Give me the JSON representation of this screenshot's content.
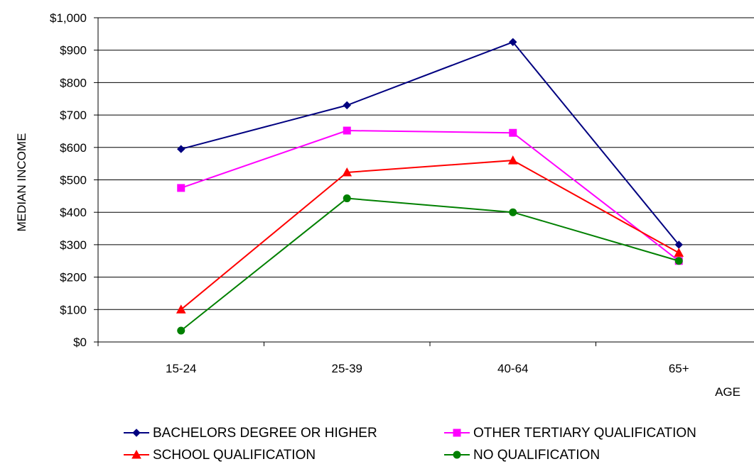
{
  "chart_data": {
    "type": "line",
    "title": "",
    "xlabel": "AGE",
    "ylabel": "MEDIAN INCOME",
    "categories": [
      "15-24",
      "25-39",
      "40-64",
      "65+"
    ],
    "ylim": [
      0,
      1000
    ],
    "yticks": [
      "$0",
      "$100",
      "$200",
      "$300",
      "$400",
      "$500",
      "$600",
      "$700",
      "$800",
      "$900",
      "$1,000"
    ],
    "grid": true,
    "legend_position": "bottom",
    "series": [
      {
        "name": "BACHELORS DEGREE OR HIGHER",
        "values": [
          595,
          730,
          925,
          300
        ],
        "color": "#000080",
        "marker": "diamond"
      },
      {
        "name": "OTHER TERTIARY QUALIFICATION",
        "values": [
          475,
          652,
          645,
          250
        ],
        "color": "#FF00FF",
        "marker": "square"
      },
      {
        "name": "SCHOOL QUALIFICATION",
        "values": [
          100,
          523,
          560,
          275
        ],
        "color": "#FF0000",
        "marker": "triangle"
      },
      {
        "name": "NO QUALIFICATION",
        "values": [
          35,
          443,
          400,
          250
        ],
        "color": "#008000",
        "marker": "circle"
      }
    ]
  }
}
